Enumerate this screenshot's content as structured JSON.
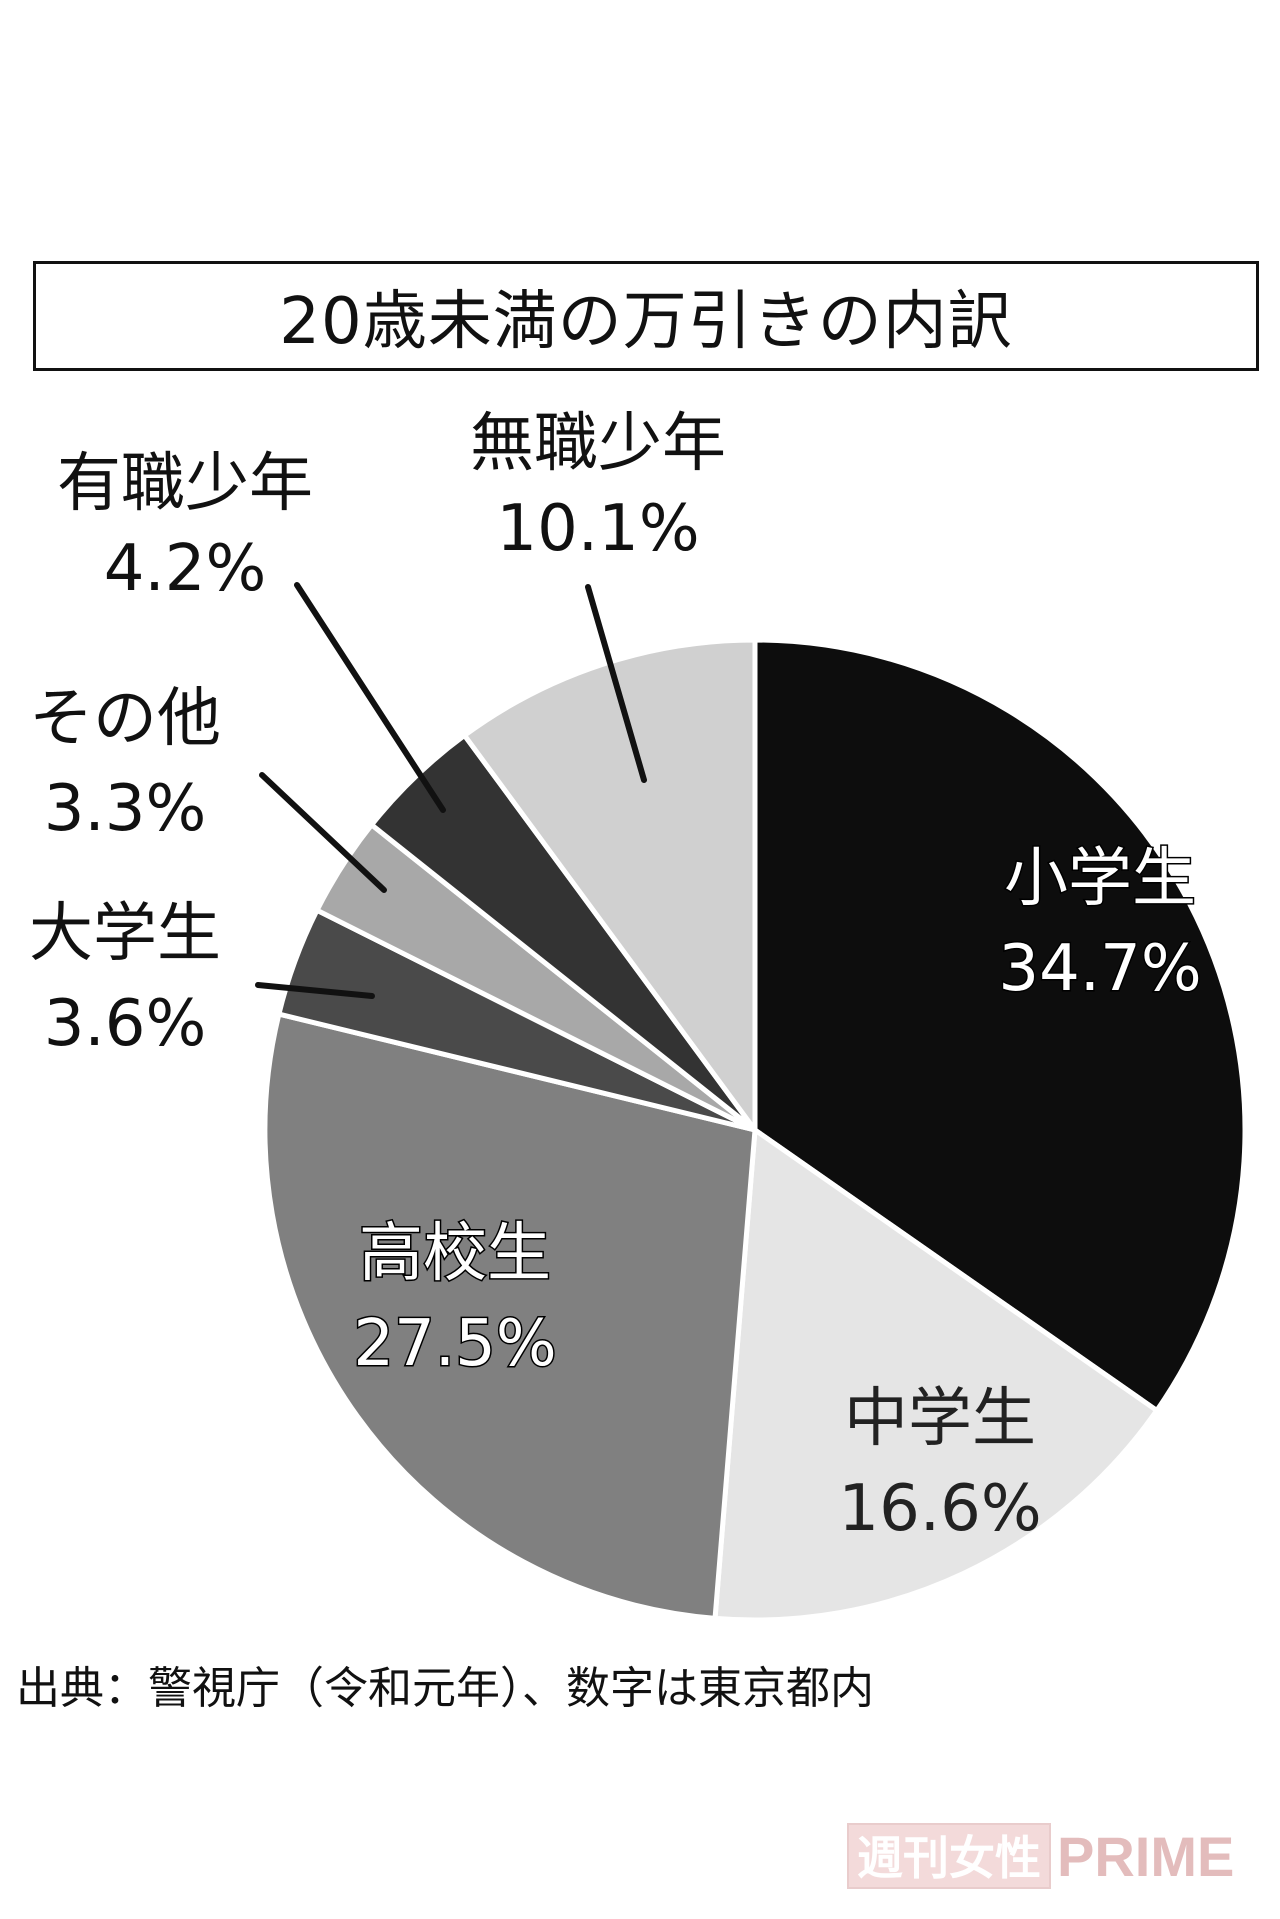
{
  "chart_data": {
    "type": "pie",
    "title": "20歳未満の万引きの内訳",
    "slices": [
      {
        "label": "小学生",
        "value_text": "34.7%",
        "value": 34.7,
        "color": "#0d0d0d",
        "label_style": "inside-white"
      },
      {
        "label": "中学生",
        "value_text": "16.6%",
        "value": 16.6,
        "color": "#e5e5e5",
        "label_style": "inside-dark"
      },
      {
        "label": "高校生",
        "value_text": "27.5%",
        "value": 27.5,
        "color": "#808080",
        "label_style": "inside-white"
      },
      {
        "label": "大学生",
        "value_text": "3.6%",
        "value": 3.6,
        "color": "#4a4a4a",
        "label_style": "outside"
      },
      {
        "label": "その他",
        "value_text": "3.3%",
        "value": 3.3,
        "color": "#a8a8a8",
        "label_style": "outside"
      },
      {
        "label": "有職少年",
        "value_text": "4.2%",
        "value": 4.2,
        "color": "#333333",
        "label_style": "outside"
      },
      {
        "label": "無職少年",
        "value_text": "10.1%",
        "value": 10.1,
        "color": "#d0d0d0",
        "label_style": "outside"
      }
    ]
  },
  "source_text": "出典：警視庁（令和元年）、数字は東京都内",
  "watermark": {
    "jp": "週刊女性",
    "en": "PRIME"
  }
}
